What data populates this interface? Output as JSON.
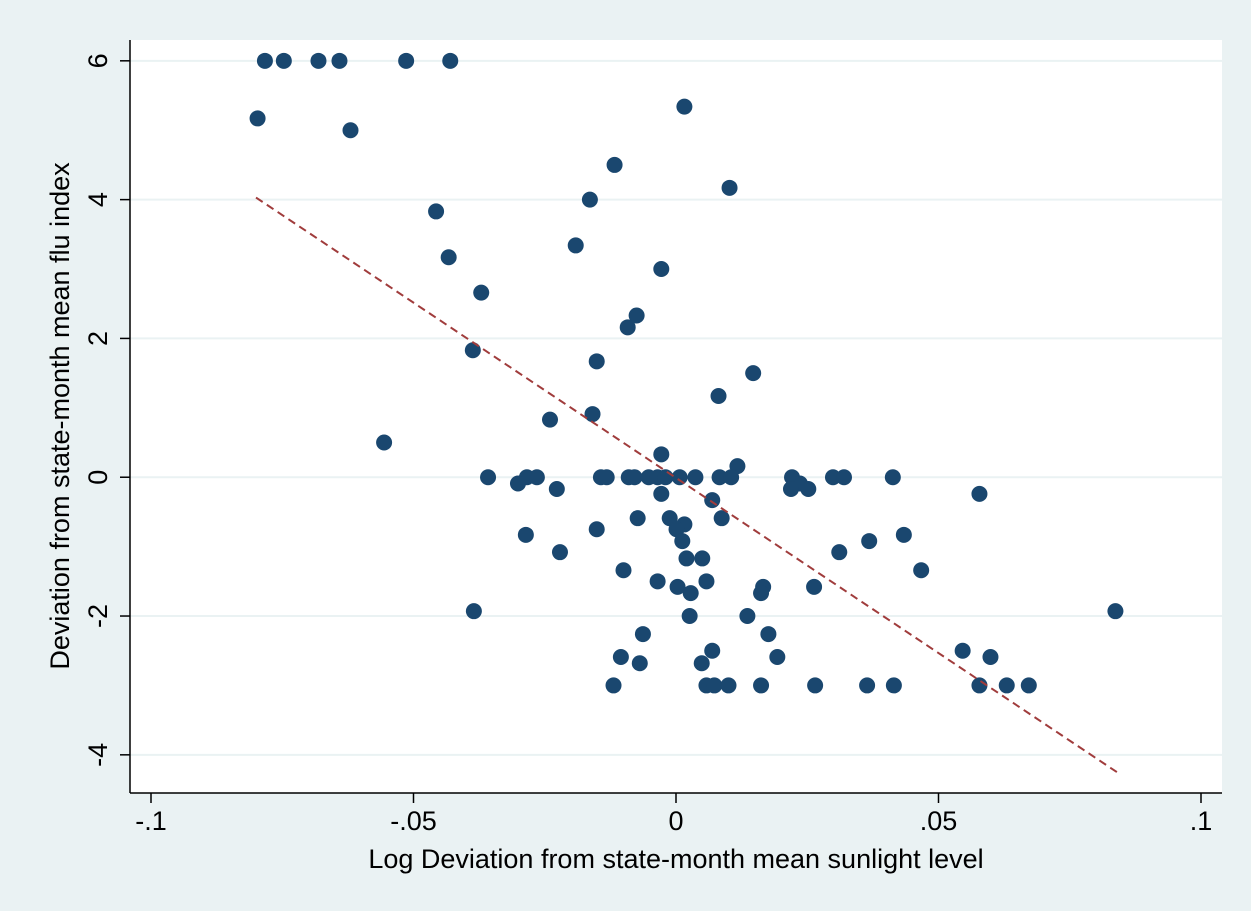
{
  "chart_data": {
    "type": "scatter",
    "xlabel": "Log Deviation from state-month mean sunlight level",
    "ylabel": "Deviation from state-month mean flu index",
    "xlim": [
      -0.104,
      0.104
    ],
    "ylim": [
      -4.55,
      6.3
    ],
    "xticks": [
      {
        "value": -0.1,
        "label": "-.1"
      },
      {
        "value": -0.05,
        "label": "-.05"
      },
      0,
      {
        "value": 0.05,
        "label": ".05"
      },
      {
        "value": 0.1,
        "label": ".1"
      }
    ],
    "yticks": [
      -4,
      -2,
      0,
      2,
      4,
      6
    ],
    "grid": true,
    "points": {
      "color": "#1a476f",
      "x": [
        -0.0783,
        -0.0747,
        -0.0681,
        -0.0641,
        -0.0514,
        -0.043,
        -0.0797,
        -0.062,
        0.0016,
        -0.0117,
        0.0102,
        -0.0164,
        -0.0457,
        -0.0191,
        -0.0433,
        -0.0028,
        -0.0371,
        -0.0075,
        -0.0092,
        -0.0387,
        -0.0151,
        0.0147,
        0.0081,
        -0.0159,
        -0.024,
        -0.0556,
        -0.0028,
        0.0117,
        -0.0358,
        -0.0284,
        -0.0265,
        -0.0143,
        -0.0132,
        -0.009,
        -0.0079,
        -0.0052,
        -0.0035,
        -0.002,
        0.0007,
        0.0037,
        0.0083,
        0.0105,
        0.0221,
        0.0299,
        0.032,
        0.0413,
        -0.0301,
        0.0236,
        -0.0227,
        0.0219,
        0.0252,
        -0.0028,
        0.0578,
        0.0069,
        -0.0073,
        -0.0012,
        0.0087,
        0.0016,
        0.0001,
        -0.0151,
        -0.0286,
        0.0434,
        0.0012,
        0.0368,
        -0.0221,
        0.0311,
        0.002,
        0.005,
        -0.01,
        0.0467,
        -0.0035,
        0.0058,
        0.0003,
        0.0166,
        0.0263,
        0.0028,
        0.0162,
        -0.0385,
        0.0837,
        0.0026,
        0.0136,
        -0.0063,
        0.0176,
        0.0069,
        0.0546,
        -0.0105,
        0.0193,
        0.0599,
        -0.0069,
        0.0049,
        -0.0119,
        0.0058,
        0.0073,
        0.01,
        0.0162,
        0.0265,
        0.0364,
        0.0415,
        0.0578,
        0.063,
        0.0672
      ],
      "y": [
        6,
        6,
        6,
        6,
        6,
        6,
        5.17,
        5.0,
        5.34,
        4.5,
        4.17,
        4.0,
        3.83,
        3.34,
        3.17,
        3.0,
        2.66,
        2.33,
        2.16,
        1.83,
        1.67,
        1.5,
        1.17,
        0.91,
        0.83,
        0.5,
        0.33,
        0.16,
        0,
        0,
        0,
        0,
        0,
        0,
        0,
        0,
        0,
        0,
        0,
        0,
        0,
        0,
        0,
        0,
        0,
        0,
        -0.09,
        -0.09,
        -0.17,
        -0.17,
        -0.17,
        -0.24,
        -0.24,
        -0.33,
        -0.59,
        -0.59,
        -0.59,
        -0.68,
        -0.75,
        -0.75,
        -0.83,
        -0.83,
        -0.92,
        -0.92,
        -1.08,
        -1.08,
        -1.17,
        -1.17,
        -1.34,
        -1.34,
        -1.5,
        -1.5,
        -1.58,
        -1.58,
        -1.58,
        -1.67,
        -1.67,
        -1.93,
        -1.93,
        -2.0,
        -2.0,
        -2.26,
        -2.26,
        -2.5,
        -2.5,
        -2.59,
        -2.59,
        -2.59,
        -2.68,
        -2.68,
        -3,
        -3,
        -3,
        -3,
        -3,
        -3,
        -3,
        -3,
        -3,
        -3,
        -3
      ]
    },
    "fit_line": {
      "color": "#a03c3c",
      "dashed": true,
      "x": [
        -0.08,
        0.084
      ],
      "y": [
        4.03,
        -4.25
      ]
    }
  }
}
